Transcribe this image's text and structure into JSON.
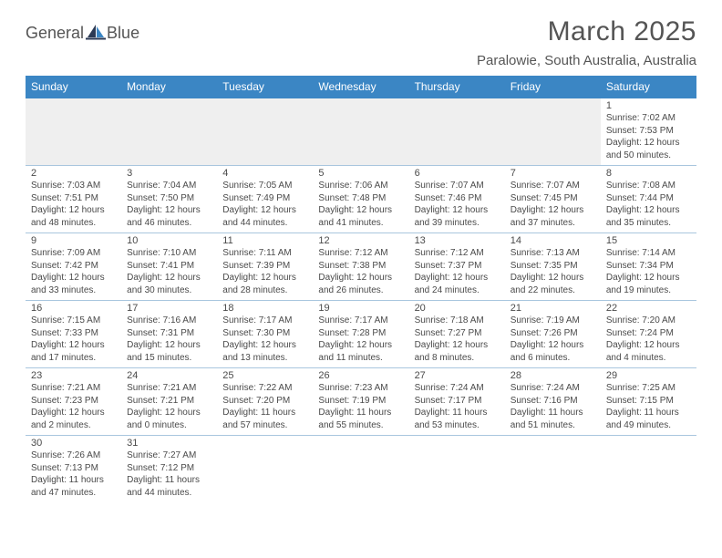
{
  "brand": {
    "text1": "General",
    "text2": "Blue",
    "color_gray": "#555555",
    "color_blue": "#3b86c4"
  },
  "title": "March 2025",
  "location": "Paralowie, South Australia, Australia",
  "headers": [
    "Sunday",
    "Monday",
    "Tuesday",
    "Wednesday",
    "Thursday",
    "Friday",
    "Saturday"
  ],
  "colors": {
    "header_bg": "#3b86c4",
    "header_text": "#ffffff",
    "border": "#a9c6de",
    "empty_bg": "#efefef",
    "text": "#4a4a4a"
  },
  "weeks": [
    [
      null,
      null,
      null,
      null,
      null,
      null,
      {
        "n": "1",
        "sr": "7:02 AM",
        "ss": "7:53 PM",
        "dl": "12 hours and 50 minutes."
      }
    ],
    [
      {
        "n": "2",
        "sr": "7:03 AM",
        "ss": "7:51 PM",
        "dl": "12 hours and 48 minutes."
      },
      {
        "n": "3",
        "sr": "7:04 AM",
        "ss": "7:50 PM",
        "dl": "12 hours and 46 minutes."
      },
      {
        "n": "4",
        "sr": "7:05 AM",
        "ss": "7:49 PM",
        "dl": "12 hours and 44 minutes."
      },
      {
        "n": "5",
        "sr": "7:06 AM",
        "ss": "7:48 PM",
        "dl": "12 hours and 41 minutes."
      },
      {
        "n": "6",
        "sr": "7:07 AM",
        "ss": "7:46 PM",
        "dl": "12 hours and 39 minutes."
      },
      {
        "n": "7",
        "sr": "7:07 AM",
        "ss": "7:45 PM",
        "dl": "12 hours and 37 minutes."
      },
      {
        "n": "8",
        "sr": "7:08 AM",
        "ss": "7:44 PM",
        "dl": "12 hours and 35 minutes."
      }
    ],
    [
      {
        "n": "9",
        "sr": "7:09 AM",
        "ss": "7:42 PM",
        "dl": "12 hours and 33 minutes."
      },
      {
        "n": "10",
        "sr": "7:10 AM",
        "ss": "7:41 PM",
        "dl": "12 hours and 30 minutes."
      },
      {
        "n": "11",
        "sr": "7:11 AM",
        "ss": "7:39 PM",
        "dl": "12 hours and 28 minutes."
      },
      {
        "n": "12",
        "sr": "7:12 AM",
        "ss": "7:38 PM",
        "dl": "12 hours and 26 minutes."
      },
      {
        "n": "13",
        "sr": "7:12 AM",
        "ss": "7:37 PM",
        "dl": "12 hours and 24 minutes."
      },
      {
        "n": "14",
        "sr": "7:13 AM",
        "ss": "7:35 PM",
        "dl": "12 hours and 22 minutes."
      },
      {
        "n": "15",
        "sr": "7:14 AM",
        "ss": "7:34 PM",
        "dl": "12 hours and 19 minutes."
      }
    ],
    [
      {
        "n": "16",
        "sr": "7:15 AM",
        "ss": "7:33 PM",
        "dl": "12 hours and 17 minutes."
      },
      {
        "n": "17",
        "sr": "7:16 AM",
        "ss": "7:31 PM",
        "dl": "12 hours and 15 minutes."
      },
      {
        "n": "18",
        "sr": "7:17 AM",
        "ss": "7:30 PM",
        "dl": "12 hours and 13 minutes."
      },
      {
        "n": "19",
        "sr": "7:17 AM",
        "ss": "7:28 PM",
        "dl": "12 hours and 11 minutes."
      },
      {
        "n": "20",
        "sr": "7:18 AM",
        "ss": "7:27 PM",
        "dl": "12 hours and 8 minutes."
      },
      {
        "n": "21",
        "sr": "7:19 AM",
        "ss": "7:26 PM",
        "dl": "12 hours and 6 minutes."
      },
      {
        "n": "22",
        "sr": "7:20 AM",
        "ss": "7:24 PM",
        "dl": "12 hours and 4 minutes."
      }
    ],
    [
      {
        "n": "23",
        "sr": "7:21 AM",
        "ss": "7:23 PM",
        "dl": "12 hours and 2 minutes."
      },
      {
        "n": "24",
        "sr": "7:21 AM",
        "ss": "7:21 PM",
        "dl": "12 hours and 0 minutes."
      },
      {
        "n": "25",
        "sr": "7:22 AM",
        "ss": "7:20 PM",
        "dl": "11 hours and 57 minutes."
      },
      {
        "n": "26",
        "sr": "7:23 AM",
        "ss": "7:19 PM",
        "dl": "11 hours and 55 minutes."
      },
      {
        "n": "27",
        "sr": "7:24 AM",
        "ss": "7:17 PM",
        "dl": "11 hours and 53 minutes."
      },
      {
        "n": "28",
        "sr": "7:24 AM",
        "ss": "7:16 PM",
        "dl": "11 hours and 51 minutes."
      },
      {
        "n": "29",
        "sr": "7:25 AM",
        "ss": "7:15 PM",
        "dl": "11 hours and 49 minutes."
      }
    ],
    [
      {
        "n": "30",
        "sr": "7:26 AM",
        "ss": "7:13 PM",
        "dl": "11 hours and 47 minutes."
      },
      {
        "n": "31",
        "sr": "7:27 AM",
        "ss": "7:12 PM",
        "dl": "11 hours and 44 minutes."
      },
      null,
      null,
      null,
      null,
      null
    ]
  ],
  "labels": {
    "sunrise": "Sunrise:",
    "sunset": "Sunset:",
    "daylight": "Daylight:"
  }
}
